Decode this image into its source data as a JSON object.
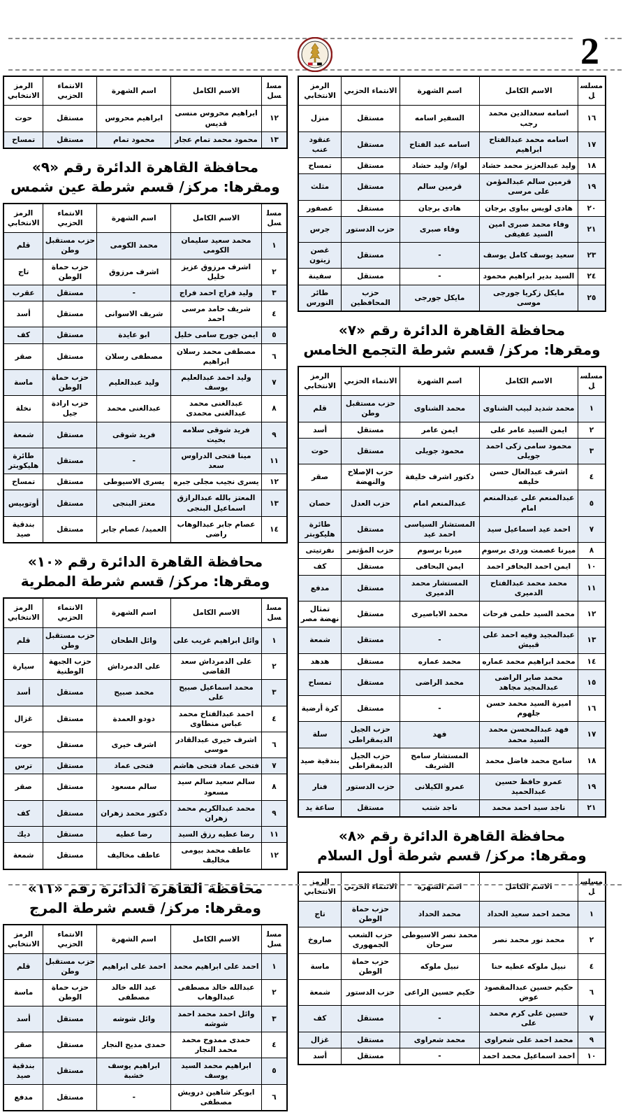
{
  "page": {
    "number": "2",
    "logo": "egypt-state-emblem"
  },
  "table_headers": {
    "serial": "مسلسل",
    "full_name": "الاسم الكامل",
    "fame_name": "اسم الشهرة",
    "party": "الانتماء الحزبي",
    "symbol": "الرمز الانتخابي"
  },
  "columns": {
    "right": [
      {
        "title": null,
        "subtitle": null,
        "rows": [
          {
            "serial": "١٦",
            "full_name": "اسامه سعدالدين محمد رجب",
            "fame_name": "السفير اسامه",
            "party": "مستقل",
            "symbol": "منزل"
          },
          {
            "serial": "١٧",
            "full_name": "اسامه محمد عبدالفتاح ابراهيم",
            "fame_name": "اسامه عبد الفتاح",
            "party": "مستقل",
            "symbol": "عنقود عنب"
          },
          {
            "serial": "١٨",
            "full_name": "وليد عبدالعزيز محمد حشاد",
            "fame_name": "لواء/ وليد حشاد",
            "party": "مستقل",
            "symbol": "تمساح"
          },
          {
            "serial": "١٩",
            "full_name": "قرمين سالم عبدالمؤمن على مرسى",
            "fame_name": "قرمين سالم",
            "party": "مستقل",
            "symbol": "مثلث"
          },
          {
            "serial": "٢٠",
            "full_name": "هادى لويس بباوى برجان",
            "fame_name": "هادى برجان",
            "party": "مستقل",
            "symbol": "عصفور"
          },
          {
            "serial": "٢١",
            "full_name": "وفاء محمد صبرى امين السيد عفيفى",
            "fame_name": "وفاء صبرى",
            "party": "حزب الدستور",
            "symbol": "جرس"
          },
          {
            "serial": "٢٣",
            "full_name": "سعيد يوسف كامل يوسف",
            "fame_name": "-",
            "party": "مستقل",
            "symbol": "غصن زيتون"
          },
          {
            "serial": "٢٤",
            "full_name": "السيد بدير ابراهيم محمود",
            "fame_name": "-",
            "party": "مستقل",
            "symbol": "سفينة"
          },
          {
            "serial": "٢٥",
            "full_name": "مايكل زكريا جورجى موسى",
            "fame_name": "مايكل جورجى",
            "party": "حزب المحافظين",
            "symbol": "طائر النورس"
          }
        ]
      },
      {
        "title": "محافظة القاهرة الدائرة رقم «٧»",
        "subtitle": "ومقرها: مركز/ قسم شرطة التجمع الخامس",
        "rows": [
          {
            "serial": "١",
            "full_name": "محمد شديد لبيب الشناوى",
            "fame_name": "محمد الشناوى",
            "party": "حزب مستقبل وطن",
            "symbol": "قلم"
          },
          {
            "serial": "٢",
            "full_name": "ايمن السيد عامر على",
            "fame_name": "ايمن عامر",
            "party": "مستقل",
            "symbol": "أسد"
          },
          {
            "serial": "٣",
            "full_name": "محمود سامى زكى احمد جويلى",
            "fame_name": "محمود جويلى",
            "party": "مستقل",
            "symbol": "حوت"
          },
          {
            "serial": "٤",
            "full_name": "اشرف عبدالعال حسن خليفه",
            "fame_name": "دكتور اشرف خليفة",
            "party": "حزب الإصلاح والنهضة",
            "symbol": "صقر"
          },
          {
            "serial": "٥",
            "full_name": "عبدالمنعم على عبدالمنعم امام",
            "fame_name": "عبدالمنعم امام",
            "party": "حزب العدل",
            "symbol": "حصان"
          },
          {
            "serial": "٧",
            "full_name": "احمد عيد اسماعيل سيد",
            "fame_name": "المستشار السياسى احمد عيد",
            "party": "مستقل",
            "symbol": "طائرة هليكوبتر"
          },
          {
            "serial": "٨",
            "full_name": "ميرنا عصمت وردى برسوم",
            "fame_name": "ميرنا برسوم",
            "party": "حزب المؤتمر",
            "symbol": "نفرتيتى"
          },
          {
            "serial": "١٠",
            "full_name": "ايمن احمد البحافر احمد",
            "fame_name": "ايمن البحافى",
            "party": "مستقل",
            "symbol": "كف"
          },
          {
            "serial": "١١",
            "full_name": "محمد محمد عبدالفتاح الدميرى",
            "fame_name": "المستشار محمد الدميرى",
            "party": "مستقل",
            "symbol": "مدفع"
          },
          {
            "serial": "١٢",
            "full_name": "محمد السيد حلمى فرحات",
            "fame_name": "محمد الاباصيرى",
            "party": "مستقل",
            "symbol": "تمثال نهضة مصر"
          },
          {
            "serial": "١٣",
            "full_name": "عبدالمجيد وفيه احمد على قبيش",
            "fame_name": "-",
            "party": "مستقل",
            "symbol": "شمعة"
          },
          {
            "serial": "١٤",
            "full_name": "محمد ابراهيم محمد عماره",
            "fame_name": "محمد عماره",
            "party": "مستقل",
            "symbol": "هدهد"
          },
          {
            "serial": "١٥",
            "full_name": "محمد صابر الراضى عبدالمجيد مجاهد",
            "fame_name": "محمد الراضى",
            "party": "مستقل",
            "symbol": "تمساح"
          },
          {
            "serial": "١٦",
            "full_name": "اميرة السيد محمد حسن جلهوم",
            "fame_name": "-",
            "party": "مستقل",
            "symbol": "كرة أرضية"
          },
          {
            "serial": "١٧",
            "full_name": "فهد عبدالمحسن محمد السيد محمد",
            "fame_name": "فهد",
            "party": "حزب الجيل الديمقراطى",
            "symbol": "سلة"
          },
          {
            "serial": "١٨",
            "full_name": "سامح محمد فاضل محمد",
            "fame_name": "المستشار سامح الشريف",
            "party": "حزب الجيل الديمقراطى",
            "symbol": "بندقية صيد"
          },
          {
            "serial": "١٩",
            "full_name": "عمرو حافظ حسين عبدالحميد",
            "fame_name": "عمرو الكيلانى",
            "party": "حزب الدستور",
            "symbol": "فنار"
          },
          {
            "serial": "٢١",
            "full_name": "ناجد سيد احمد محمد",
            "fame_name": "ناجد شتب",
            "party": "مستقل",
            "symbol": "ساعة يد"
          }
        ]
      },
      {
        "title": "محافظة القاهرة الدائرة رقم «٨»",
        "subtitle": "ومقرها: مركز/ قسم شرطة أول السلام",
        "rows": [
          {
            "serial": "١",
            "full_name": "محمد احمد سعيد الحداد",
            "fame_name": "محمد الحداد",
            "party": "حزب حماة الوطن",
            "symbol": "تاج"
          },
          {
            "serial": "٢",
            "full_name": "محمد نور محمد نصر",
            "fame_name": "محمد نصر الاسيوطى سرحان",
            "party": "حزب الشعب الجمهورى",
            "symbol": "صاروخ"
          },
          {
            "serial": "٤",
            "full_name": "نبيل ملوكه عطيه حنا",
            "fame_name": "نبيل ملوكه",
            "party": "حزب حماة الوطن",
            "symbol": "ماسة"
          },
          {
            "serial": "٦",
            "full_name": "حكيم حسين عبدالمقصود عوض",
            "fame_name": "حكيم حسين الراعى",
            "party": "حزب الدستور",
            "symbol": "شمعة"
          },
          {
            "serial": "٧",
            "full_name": "حسين على كرم محمد على",
            "fame_name": "-",
            "party": "مستقل",
            "symbol": "كف"
          },
          {
            "serial": "٩",
            "full_name": "محمد احمد على شعراوى",
            "fame_name": "محمد شعراوى",
            "party": "مستقل",
            "symbol": "غزال"
          },
          {
            "serial": "١٠",
            "full_name": "احمد اسماعيل محمد احمد",
            "fame_name": "-",
            "party": "مستقل",
            "symbol": "أسد"
          }
        ]
      }
    ],
    "left": [
      {
        "title": null,
        "subtitle": null,
        "rows": [
          {
            "serial": "١٢",
            "full_name": "ابراهيم محروس منسى قديس",
            "fame_name": "ابراهيم محروس",
            "party": "مستقل",
            "symbol": "حوت"
          },
          {
            "serial": "١٣",
            "full_name": "محمود محمد تمام عجار",
            "fame_name": "محمود تمام",
            "party": "مستقل",
            "symbol": "تمساح"
          }
        ]
      },
      {
        "title": "محافظة القاهرة الدائرة رقم «٩»",
        "subtitle": "ومقرها: مركز/ قسم شرطة عين شمس",
        "rows": [
          {
            "serial": "١",
            "full_name": "محمد سعيد سليمان الكومى",
            "fame_name": "محمد الكومى",
            "party": "حزب مستقبل وطن",
            "symbol": "قلم"
          },
          {
            "serial": "٢",
            "full_name": "اشرف مرزوق عزيز خليل",
            "fame_name": "اشرف مرزوق",
            "party": "حزب حماة الوطن",
            "symbol": "تاج"
          },
          {
            "serial": "٣",
            "full_name": "وليد فراج احمد فراج",
            "fame_name": "-",
            "party": "مستقل",
            "symbol": "عقرب"
          },
          {
            "serial": "٤",
            "full_name": "شريف حامد مرسى احمد",
            "fame_name": "شريف الاسوانى",
            "party": "مستقل",
            "symbol": "أسد"
          },
          {
            "serial": "٥",
            "full_name": "ايمن جورج سامى خليل",
            "fame_name": "ابو عايدة",
            "party": "مستقل",
            "symbol": "كف"
          },
          {
            "serial": "٦",
            "full_name": "مصطفى محمد رسلان ابراهيم",
            "fame_name": "مصطفى رسلان",
            "party": "مستقل",
            "symbol": "صقر"
          },
          {
            "serial": "٧",
            "full_name": "وليد احمد عبدالعليم يوسف",
            "fame_name": "وليد عبدالعليم",
            "party": "حزب حماة الوطن",
            "symbol": "ماسة"
          },
          {
            "serial": "٨",
            "full_name": "عبدالغنى محمد عبدالغنى محمدى",
            "fame_name": "عبدالغنى محمد",
            "party": "حزب ارادة جيل",
            "symbol": "نخلة"
          },
          {
            "serial": "٩",
            "full_name": "فريد شوقى سلامه بخيت",
            "fame_name": "فريد شوقى",
            "party": "مستقل",
            "symbol": "شمعة"
          },
          {
            "serial": "١١",
            "full_name": "مينا فتحى الدراوس سعد",
            "fame_name": "-",
            "party": "مستقل",
            "symbol": "طائرة هليكوبتر"
          },
          {
            "serial": "١٢",
            "full_name": "يسرى نجيب مجلى جبره",
            "fame_name": "يسرى الاسيوطى",
            "party": "مستقل",
            "symbol": "تمساح"
          },
          {
            "serial": "١٣",
            "full_name": "المعتز بالله عبدالرازق اسماعيل البنجى",
            "fame_name": "معتز البنجى",
            "party": "مستقل",
            "symbol": "أوتوبيس"
          },
          {
            "serial": "١٤",
            "full_name": "عصام جابر عبدالوهاب راضى",
            "fame_name": "العميد/ عصام جابر",
            "party": "مستقل",
            "symbol": "بندقية صيد"
          }
        ]
      },
      {
        "title": "محافظة القاهرة الدائرة رقم «١٠»",
        "subtitle": "ومقرها: مركز/ قسم شرطة المطرية",
        "rows": [
          {
            "serial": "١",
            "full_name": "وائل ابراهيم غريب على",
            "fame_name": "وائل الطحان",
            "party": "حزب مستقبل وطن",
            "symbol": "قلم"
          },
          {
            "serial": "٢",
            "full_name": "على الدمرداش سعد القاضى",
            "fame_name": "على الدمرداش",
            "party": "حزب الجبهة الوطنية",
            "symbol": "سيارة"
          },
          {
            "serial": "٣",
            "full_name": "محمد اسماعيل صبيح على",
            "fame_name": "محمد صبيح",
            "party": "مستقل",
            "symbol": "أسد"
          },
          {
            "serial": "٤",
            "full_name": "احمد عبدالفتاح محمد عباس منطاوى",
            "fame_name": "دودو العمدة",
            "party": "مستقل",
            "symbol": "غزال"
          },
          {
            "serial": "٦",
            "full_name": "اشرف خيرى عبدالقادر موسى",
            "fame_name": "اشرف خيرى",
            "party": "مستقل",
            "symbol": "حوت"
          },
          {
            "serial": "٧",
            "full_name": "فتحى عماد فتحى هاشم",
            "fame_name": "فتحى عماد",
            "party": "مستقل",
            "symbol": "ترس"
          },
          {
            "serial": "٨",
            "full_name": "سالم سعيد سالم سيد مسعود",
            "fame_name": "سالم مسعود",
            "party": "مستقل",
            "symbol": "صقر"
          },
          {
            "serial": "٩",
            "full_name": "محمد عبدالكريم محمد زهران",
            "fame_name": "دكتور محمد زهران",
            "party": "مستقل",
            "symbol": "كف"
          },
          {
            "serial": "١١",
            "full_name": "رضا عطيه رزق السيد",
            "fame_name": "رضا عطيه",
            "party": "مستقل",
            "symbol": "ديك"
          },
          {
            "serial": "١٢",
            "full_name": "عاطف محمد بيومى مخاليف",
            "fame_name": "عاطف مخاليف",
            "party": "مستقل",
            "symbol": "شمعة"
          }
        ]
      },
      {
        "title": "محافظة القاهرة الدائرة رقم «١١»",
        "subtitle": "ومقرها: مركز/ قسم شرطة المرج",
        "rows": [
          {
            "serial": "١",
            "full_name": "احمد على ابراهيم محمد",
            "fame_name": "احمد على ابراهيم",
            "party": "حزب مستقبل وطن",
            "symbol": "قلم"
          },
          {
            "serial": "٢",
            "full_name": "عبدالله خالد مصطفى عبدالوهاب",
            "fame_name": "عبد الله خالد مصطفى",
            "party": "حزب حماة الوطن",
            "symbol": "ماسة"
          },
          {
            "serial": "٣",
            "full_name": "وائل احمد محمد احمد شوشه",
            "fame_name": "وائل شوشه",
            "party": "مستقل",
            "symbol": "أسد"
          },
          {
            "serial": "٤",
            "full_name": "حمدى ممدوح محمد محمد النجار",
            "fame_name": "حمدى مديح النجار",
            "party": "مستقل",
            "symbol": "صقر"
          },
          {
            "serial": "٥",
            "full_name": "ابراهيم محمد السيد يوسف",
            "fame_name": "ابراهيم يوسف خشبة",
            "party": "مستقل",
            "symbol": "بندقية صيد"
          },
          {
            "serial": "٦",
            "full_name": "ابوبكر شاهين درويش مصطفى",
            "fame_name": "-",
            "party": "مستقل",
            "symbol": "مدفع"
          }
        ]
      }
    ]
  }
}
